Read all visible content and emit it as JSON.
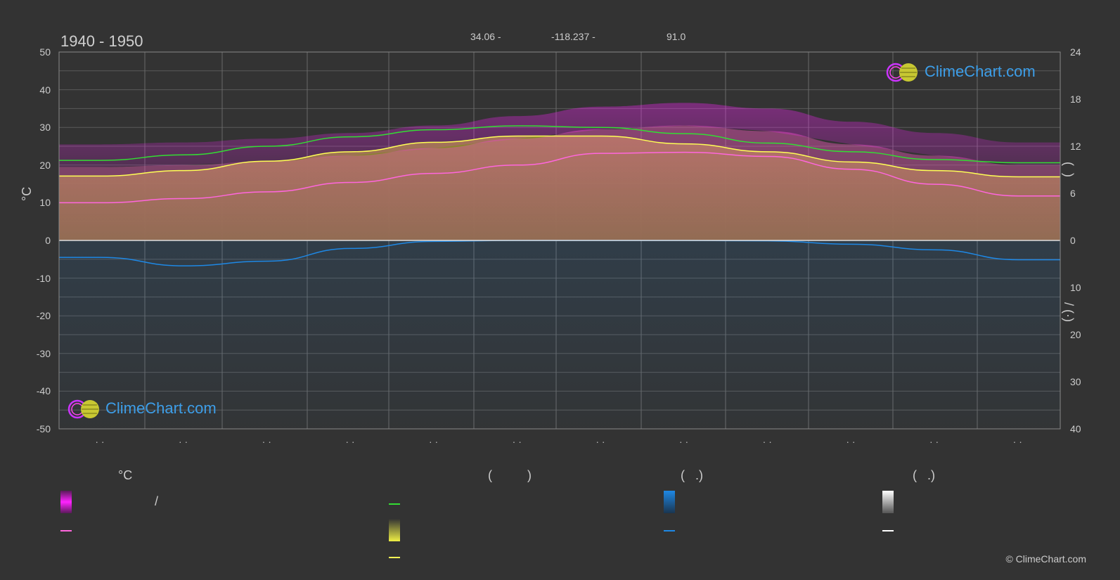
{
  "header": {
    "period": "1940 - 1950",
    "lat": "34.06 -",
    "lon": "-118.237 -",
    "elev": "91.0"
  },
  "chart_data": {
    "type": "area",
    "title": "1940 - 1950",
    "ylabel": "°C",
    "ylim": [
      -50,
      50
    ],
    "yticks_left": [
      "50",
      "40",
      "30",
      "20",
      "10",
      "0",
      "-10",
      "-20",
      "-30",
      "-40",
      "-50"
    ],
    "yticks_right_top": [
      "24",
      "18",
      "12",
      "6",
      "0"
    ],
    "yticks_right_bottom": [
      "10",
      "20",
      "30",
      "40"
    ],
    "y2_label_top": "(  )",
    "y2_label_bottom": "/ (·)",
    "x_tick_labels": [
      "· ·",
      "· ·",
      "· ·",
      "· ·",
      "· ·",
      "· ·",
      "· ·",
      "· ·",
      "· ·",
      "· ·",
      "· ·",
      "· ·"
    ],
    "months_x": [
      0.5,
      1.5,
      2.5,
      3.5,
      4.5,
      5.5,
      6.5,
      7.5,
      8.5,
      9.5,
      10.5,
      11.5
    ],
    "series": [
      {
        "key": "daylight",
        "color": "#33dd33",
        "values": [
          10.2,
          10.9,
          12.0,
          13.2,
          14.1,
          14.6,
          14.4,
          13.6,
          12.4,
          11.3,
          10.3,
          9.9
        ],
        "unit": "h"
      },
      {
        "key": "sunshine",
        "color": "#ffff55",
        "values": [
          8.2,
          8.9,
          10.1,
          11.3,
          12.5,
          13.3,
          13.3,
          12.3,
          11.3,
          10.0,
          8.9,
          8.1
        ],
        "unit": "h"
      },
      {
        "key": "temp_mean",
        "color": "#ff66dd",
        "values": [
          10.0,
          11.1,
          12.9,
          15.4,
          17.8,
          20.0,
          23.1,
          23.4,
          22.3,
          18.9,
          14.9,
          11.8
        ],
        "unit": "°C"
      },
      {
        "key": "temp_max",
        "color": "#cc66aa",
        "values": [
          19.5,
          20.0,
          21.0,
          22.5,
          24.5,
          27.0,
          29.5,
          30.5,
          29.0,
          25.5,
          22.5,
          20.0
        ],
        "unit": "°C"
      },
      {
        "key": "precip",
        "color": "#1e88e5",
        "values": [
          3.6,
          5.4,
          4.4,
          1.7,
          0.2,
          0.0,
          0.0,
          0.0,
          0.1,
          0.8,
          2.0,
          4.1
        ],
        "unit": "mm"
      }
    ]
  },
  "legend": {
    "col1_head": "°C",
    "col1_sep": "/",
    "col2_head": "(          )",
    "col3_head": "(   .)",
    "col4_head": "(   .)"
  },
  "colors": {
    "background": "#333333",
    "magenta": "#ff22ff",
    "pink_line": "#ff66dd",
    "green": "#33dd33",
    "yellow": "#ffff55",
    "blue": "#1e88e5",
    "white": "#ffffff",
    "brand_blue": "#3d9ee8"
  },
  "brand": {
    "name": "ClimeChart.com",
    "copyright": "© ClimeChart.com"
  }
}
